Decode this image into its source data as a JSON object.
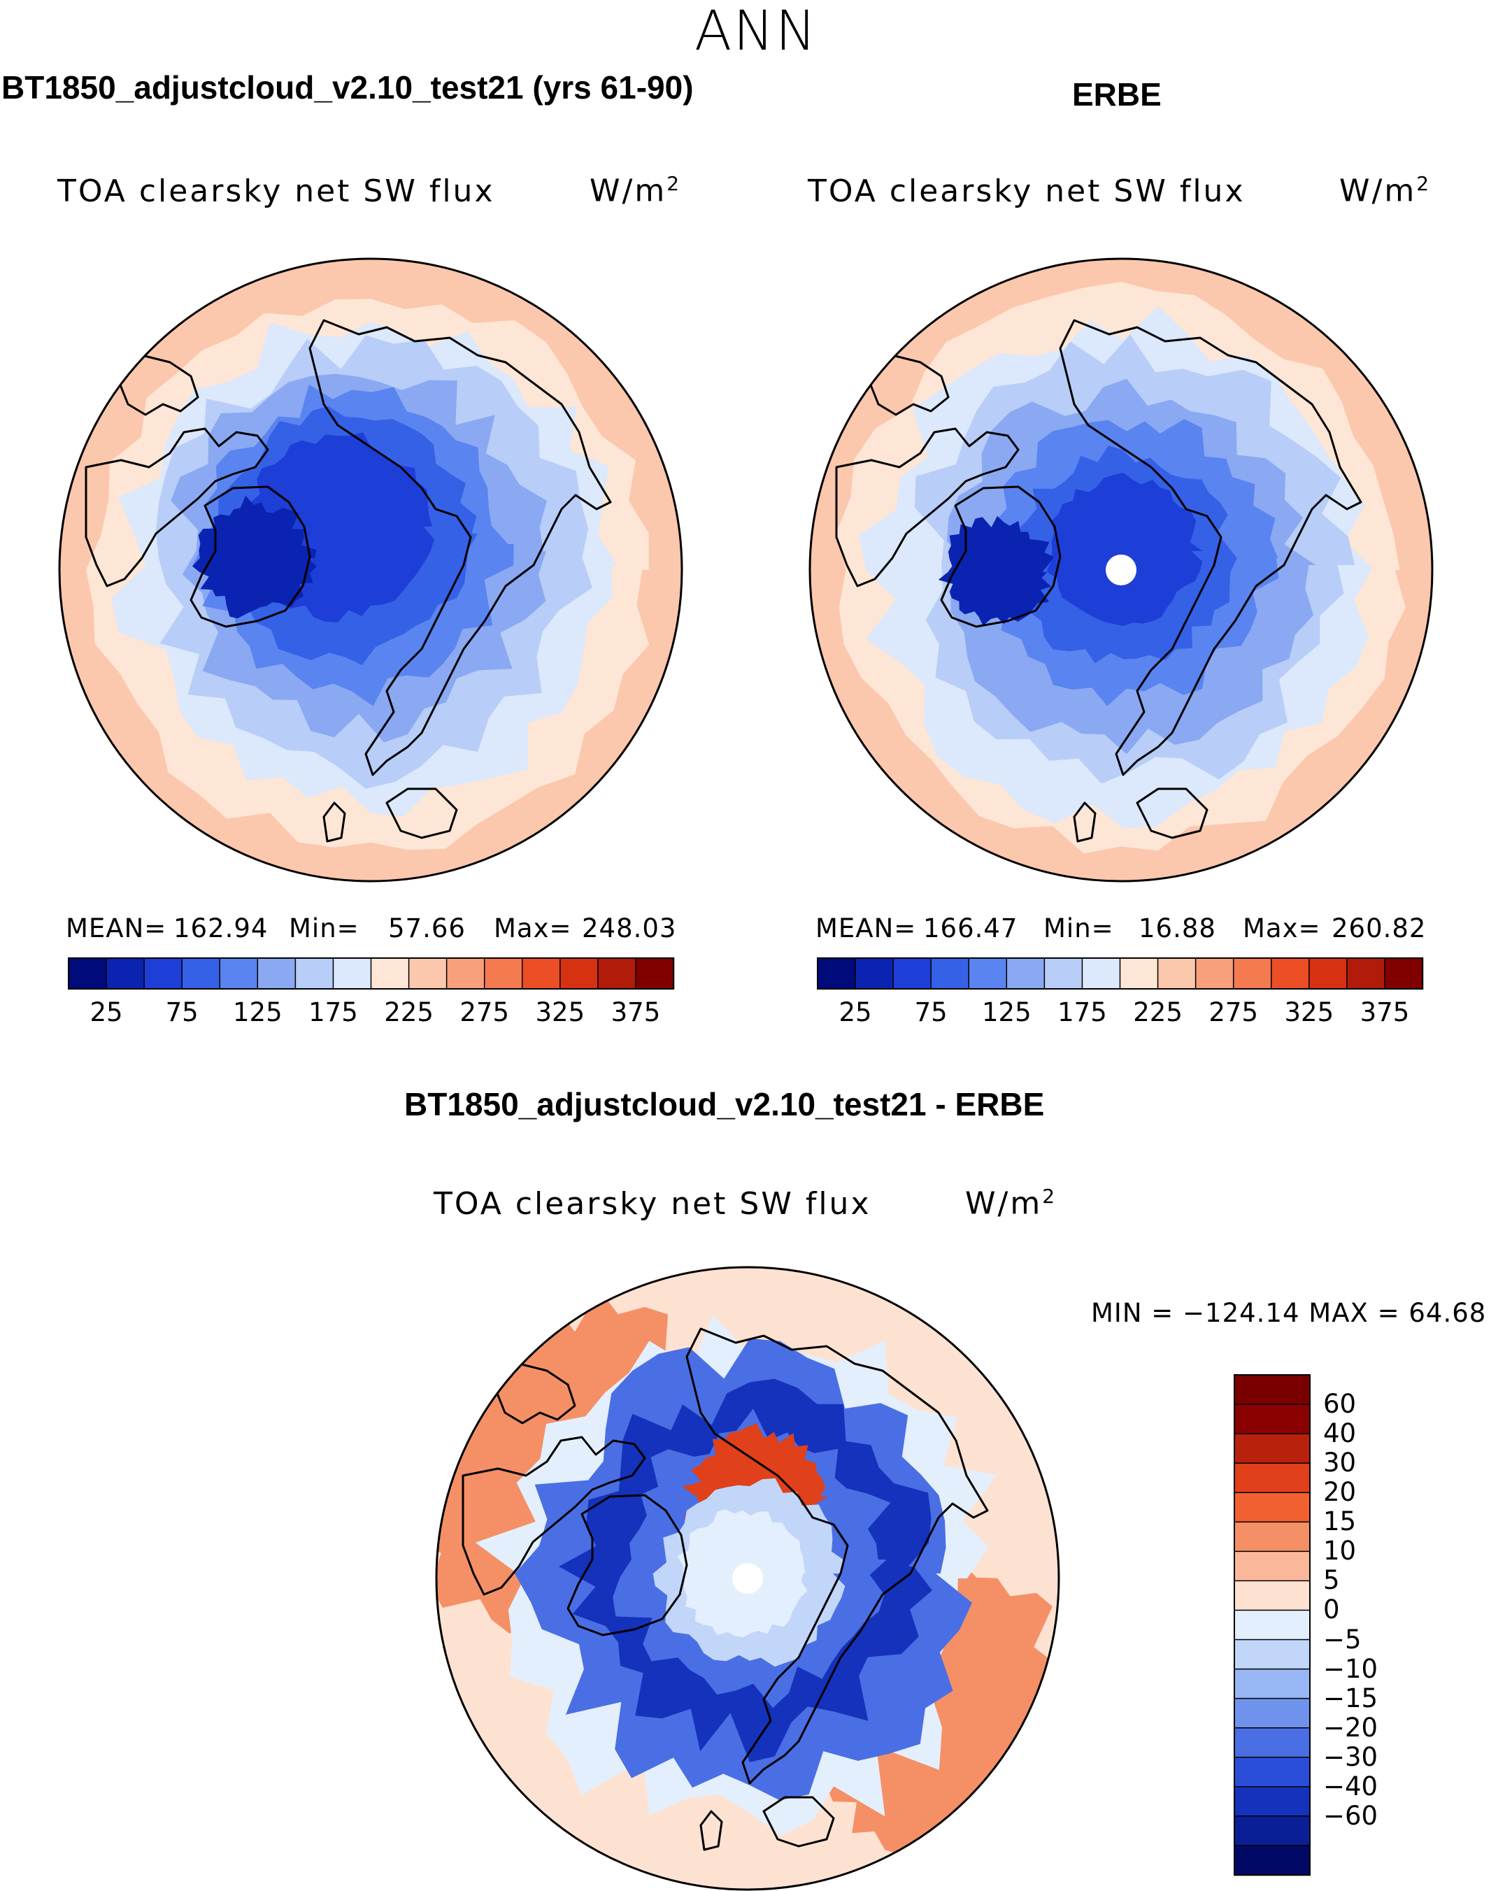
{
  "title": "ANN",
  "panels": [
    {
      "title": "BT1850_adjustcloud_v2.10_test21 (yrs 61-90)",
      "variable": "TOA clearsky net SW flux",
      "units": "W/m",
      "units_sup": "2",
      "mean_label": "MEAN=",
      "mean_value": "162.94",
      "min_label": "Min=",
      "min_value": "57.66",
      "max_label": "Max=",
      "max_value": "248.03"
    },
    {
      "title": "ERBE",
      "variable": "TOA clearsky net SW flux",
      "units": "W/m",
      "units_sup": "2",
      "mean_label": "MEAN=",
      "mean_value": "166.47",
      "min_label": "Min=",
      "min_value": "16.88",
      "max_label": "Max=",
      "max_value": "260.82"
    },
    {
      "title": "BT1850_adjustcloud_v2.10_test21 - ERBE",
      "variable": "TOA clearsky net SW flux",
      "units": "W/m",
      "units_sup": "2",
      "minmax_text": "MIN = −124.14 MAX =   64.68"
    }
  ],
  "chart_data": [
    {
      "type": "heatmap",
      "projection": "north polar stereographic",
      "title": "BT1850_adjustcloud_v2.10_test21 (yrs 61-90)",
      "variable": "TOA clearsky net SW flux",
      "units": "W/m2",
      "mean": 162.94,
      "min": 57.66,
      "max": 248.03,
      "levels": [
        25,
        50,
        75,
        100,
        125,
        150,
        175,
        200,
        225,
        250,
        275,
        300,
        325,
        350,
        375
      ],
      "colorbar_tick_labels": [
        "25",
        "75",
        "125",
        "175",
        "225",
        "275",
        "325",
        "375"
      ],
      "colors": [
        "#000a7a",
        "#0a23b0",
        "#1e3ed8",
        "#3561e6",
        "#5a84ef",
        "#8aa9f2",
        "#b8cdf7",
        "#dce8fb",
        "#fde6d6",
        "#fbc7ad",
        "#f8a07b",
        "#f47a4f",
        "#ec4f25",
        "#d63211",
        "#b11b0a",
        "#800000"
      ]
    },
    {
      "type": "heatmap",
      "projection": "north polar stereographic",
      "title": "ERBE",
      "variable": "TOA clearsky net SW flux",
      "units": "W/m2",
      "mean": 166.47,
      "min": 16.88,
      "max": 260.82,
      "levels": [
        25,
        50,
        75,
        100,
        125,
        150,
        175,
        200,
        225,
        250,
        275,
        300,
        325,
        350,
        375
      ],
      "colorbar_tick_labels": [
        "25",
        "75",
        "125",
        "175",
        "225",
        "275",
        "325",
        "375"
      ],
      "colors": [
        "#000a7a",
        "#0a23b0",
        "#1e3ed8",
        "#3561e6",
        "#5a84ef",
        "#8aa9f2",
        "#b8cdf7",
        "#dce8fb",
        "#fde6d6",
        "#fbc7ad",
        "#f8a07b",
        "#f47a4f",
        "#ec4f25",
        "#d63211",
        "#b11b0a",
        "#800000"
      ]
    },
    {
      "type": "heatmap",
      "projection": "north polar stereographic",
      "title": "BT1850_adjustcloud_v2.10_test21 - ERBE",
      "variable": "TOA clearsky net SW flux",
      "units": "W/m2",
      "min": -124.14,
      "max": 64.68,
      "levels": [
        60,
        40,
        30,
        20,
        15,
        10,
        5,
        0,
        -5,
        -10,
        -15,
        -20,
        -30,
        -40,
        -60
      ],
      "colorbar_tick_labels": [
        "60",
        "40",
        "30",
        "20",
        "15",
        "10",
        "5",
        "0",
        "−5",
        "−10",
        "−15",
        "−20",
        "−30",
        "−40",
        "−60"
      ],
      "colors": [
        "#8b0000",
        "#b8210c",
        "#e0401a",
        "#f06030",
        "#f59066",
        "#fab79a",
        "#fde2d2",
        "#e4effd",
        "#c2d6fa",
        "#98b6f3",
        "#6f93ec",
        "#4a6fe4",
        "#2a4ed8",
        "#1432bb",
        "#0a1f96",
        "#000a66"
      ]
    }
  ]
}
